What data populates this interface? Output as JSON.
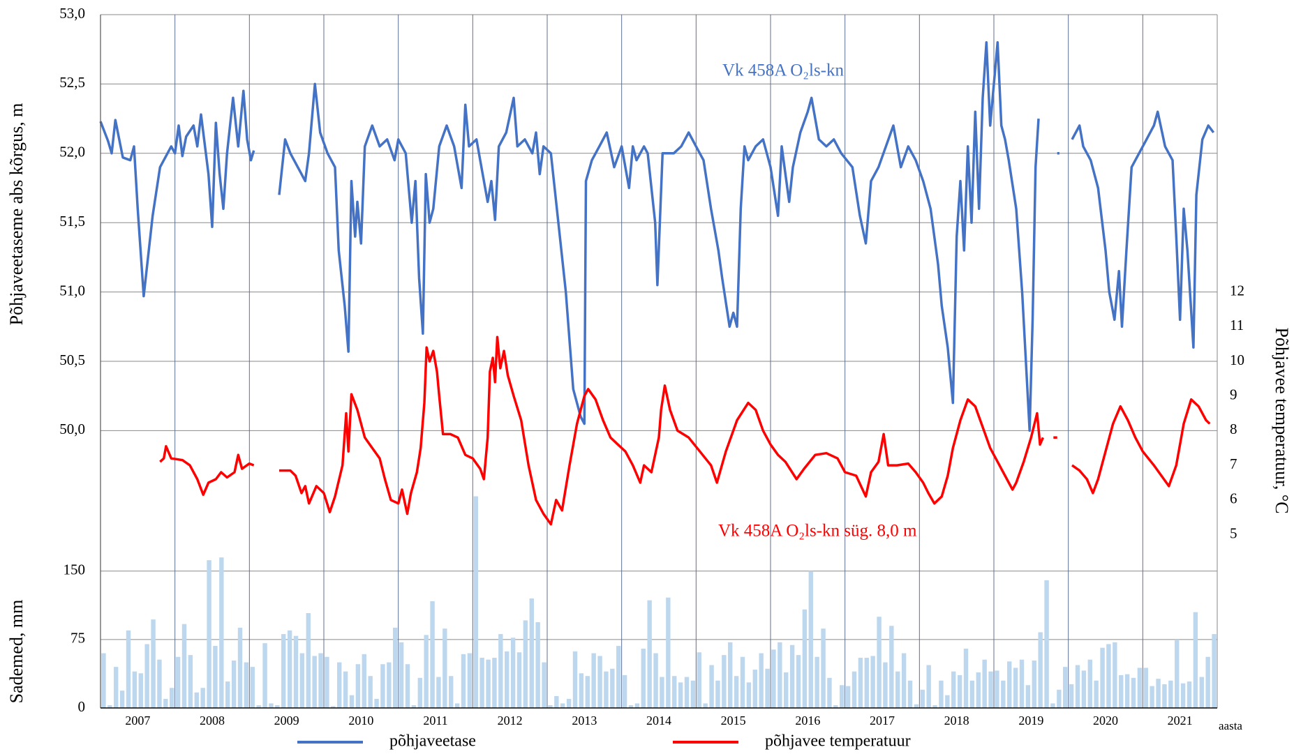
{
  "chart_data": [
    {
      "type": "line",
      "ylabel": "Põhjaveetaseme abs kõrgus, m",
      "y2label": "Põhjavee temperatuur, °C",
      "xlabel": "aasta",
      "annotations": [
        "Vk 458A  O₂ls-kn",
        "Vk 458A  O₂ls-kn  süg. 8,0 m"
      ],
      "xlim": [
        2007,
        2022
      ],
      "xticks": [
        2007,
        2008,
        2009,
        2010,
        2011,
        2012,
        2013,
        2014,
        2015,
        2016,
        2017,
        2018,
        2019,
        2020,
        2021
      ],
      "ylim": [
        48,
        53
      ],
      "yticks": [
        {
          "value": 50,
          "label": "50,0"
        },
        {
          "value": 50.5,
          "label": "50,5"
        },
        {
          "value": 51,
          "label": "51,0"
        },
        {
          "value": 51.5,
          "label": "51,5"
        },
        {
          "value": 52,
          "label": "52,0"
        },
        {
          "value": 52.5,
          "label": "52,5"
        },
        {
          "value": 53,
          "label": "53,0"
        }
      ],
      "y2lim": [
        0,
        20
      ],
      "y2ticks": [
        5,
        6,
        7,
        8,
        9,
        10,
        11,
        12
      ],
      "grid": true,
      "legend": "bottom",
      "series": [
        {
          "name": "põhjaveetase",
          "color": "#4472c4",
          "x": [
            2007.0,
            2007.1,
            2007.15,
            2007.2,
            2007.3,
            2007.4,
            2007.45,
            2007.5,
            2007.58,
            2007.7,
            2007.8,
            2007.95,
            2008.0,
            2008.05,
            2008.1,
            2008.15,
            2008.25,
            2008.3,
            2008.35,
            2008.45,
            2008.5,
            2008.55,
            2008.6,
            2008.65,
            2008.7,
            2008.78,
            2008.85,
            2008.92,
            2008.97,
            2009.02,
            2009.06,
            2009.2,
            2009.4,
            2009.48,
            2009.55,
            2009.7,
            2009.75,
            2009.8,
            2009.88,
            2009.95,
            2010.05,
            2010.15,
            2010.2,
            2010.28,
            2010.33,
            2010.37,
            2010.42,
            2010.45,
            2010.5,
            2010.55,
            2010.65,
            2010.75,
            2010.85,
            2010.95,
            2011.0,
            2011.1,
            2011.18,
            2011.23,
            2011.28,
            2011.33,
            2011.37,
            2011.42,
            2011.47,
            2011.55,
            2011.65,
            2011.75,
            2011.85,
            2011.9,
            2011.95,
            2012.05,
            2012.1,
            2012.2,
            2012.25,
            2012.3,
            2012.35,
            2012.45,
            2012.55,
            2012.6,
            2012.7,
            2012.8,
            2012.85,
            2012.9,
            2012.95,
            2013.05,
            2013.15,
            2013.25,
            2013.35,
            2013.45,
            2013.5,
            2013.52,
            2013.6,
            2013.7,
            2013.8,
            2013.9,
            2014.0,
            2014.1,
            2014.15,
            2014.2,
            2014.3,
            2014.35,
            2014.45,
            2014.48,
            2014.55,
            2014.7,
            2014.8,
            2014.9,
            2015.0,
            2015.1,
            2015.2,
            2015.3,
            2015.35,
            2015.45,
            2015.5,
            2015.55,
            2015.6,
            2015.65,
            2015.7,
            2015.8,
            2015.9,
            2016.0,
            2016.1,
            2016.15,
            2016.25,
            2016.3,
            2016.4,
            2016.5,
            2016.55,
            2016.65,
            2016.75,
            2016.85,
            2016.95,
            2017.1,
            2017.2,
            2017.28,
            2017.35,
            2017.45,
            2017.55,
            2017.65,
            2017.75,
            2017.85,
            2017.95,
            2018.05,
            2018.15,
            2018.25,
            2018.3,
            2018.38,
            2018.45,
            2018.5,
            2018.55,
            2018.6,
            2018.65,
            2018.7,
            2018.75,
            2018.8,
            2018.85,
            2018.9,
            2018.95,
            2019.0,
            2019.05,
            2019.1,
            2019.15,
            2019.2,
            2019.3,
            2019.38,
            2019.45,
            2019.48,
            2019.52,
            2019.56,
            2019.6,
            2019.75,
            2019.85,
            2019.88,
            2019.95,
            2020.05,
            2020.15,
            2020.2,
            2020.3,
            2020.4,
            2020.5,
            2020.55,
            2020.62,
            2020.68,
            2020.72,
            2020.78,
            2020.85,
            2020.95,
            2021.05,
            2021.15,
            2021.2,
            2021.3,
            2021.4,
            2021.45,
            2021.5,
            2021.55,
            2021.6,
            2021.68,
            2021.72,
            2021.8,
            2021.88,
            2021.95
          ],
          "values": [
            52.23,
            52.09,
            52.0,
            52.24,
            51.97,
            51.95,
            52.05,
            51.6,
            50.97,
            51.55,
            51.9,
            52.05,
            52.0,
            52.2,
            51.98,
            52.12,
            52.2,
            52.05,
            52.28,
            51.85,
            51.47,
            52.22,
            51.85,
            51.6,
            52.0,
            52.4,
            52.05,
            52.45,
            52.1,
            51.95,
            52.02,
            null,
            51.7,
            52.1,
            52.0,
            51.85,
            51.8,
            52.0,
            52.5,
            52.15,
            52.0,
            51.9,
            51.3,
            50.9,
            50.57,
            51.8,
            51.4,
            51.65,
            51.35,
            52.05,
            52.2,
            52.05,
            52.1,
            51.95,
            52.1,
            52.0,
            51.5,
            51.8,
            51.1,
            50.7,
            51.85,
            51.5,
            51.6,
            52.05,
            52.2,
            52.05,
            51.75,
            52.35,
            52.05,
            52.1,
            51.95,
            51.65,
            51.8,
            51.52,
            52.05,
            52.15,
            52.4,
            52.05,
            52.1,
            52.0,
            52.15,
            51.85,
            52.05,
            52.0,
            51.5,
            51.0,
            50.3,
            50.1,
            50.05,
            51.8,
            51.95,
            52.05,
            52.15,
            51.9,
            52.05,
            51.75,
            52.05,
            51.95,
            52.05,
            52.0,
            51.5,
            51.05,
            52.0,
            52.0,
            52.05,
            52.15,
            52.05,
            51.95,
            51.6,
            51.3,
            51.1,
            50.75,
            50.85,
            50.75,
            51.6,
            52.05,
            51.95,
            52.05,
            52.1,
            51.9,
            51.55,
            52.05,
            51.65,
            51.9,
            52.15,
            52.3,
            52.4,
            52.1,
            52.05,
            52.1,
            52.0,
            51.9,
            51.55,
            51.35,
            51.8,
            51.9,
            52.05,
            52.2,
            51.9,
            52.05,
            51.95,
            51.8,
            51.6,
            51.2,
            50.9,
            50.6,
            50.2,
            51.4,
            51.8,
            51.3,
            52.05,
            51.5,
            52.3,
            51.6,
            52.4,
            52.8,
            52.2,
            52.5,
            52.8,
            52.2,
            52.1,
            51.95,
            51.6,
            51.0,
            50.3,
            50.0,
            50.8,
            51.9,
            52.25,
            null,
            52.0,
            52.0,
            null,
            52.1,
            52.2,
            52.05,
            51.95,
            51.75,
            51.3,
            51.0,
            50.8,
            51.15,
            50.75,
            51.3,
            51.9,
            52.0,
            52.1,
            52.2,
            52.3,
            52.05,
            51.95,
            51.4,
            50.8,
            51.6,
            51.3,
            50.6,
            51.7,
            52.1,
            52.2,
            52.15
          ]
        },
        {
          "name": "põhjavee temperatuur",
          "color": "#ff0000",
          "axis": "y2",
          "x": [
            2007.8,
            2007.85,
            2007.88,
            2007.95,
            2008.1,
            2008.2,
            2008.3,
            2008.38,
            2008.45,
            2008.55,
            2008.62,
            2008.7,
            2008.8,
            2008.85,
            2008.9,
            2009.0,
            2009.06,
            2009.2,
            2009.4,
            2009.55,
            2009.62,
            2009.7,
            2009.75,
            2009.8,
            2009.9,
            2010.0,
            2010.08,
            2010.15,
            2010.25,
            2010.3,
            2010.33,
            2010.37,
            2010.45,
            2010.55,
            2010.65,
            2010.75,
            2010.82,
            2010.9,
            2011.0,
            2011.05,
            2011.12,
            2011.17,
            2011.25,
            2011.3,
            2011.35,
            2011.38,
            2011.42,
            2011.47,
            2011.52,
            2011.55,
            2011.6,
            2011.7,
            2011.8,
            2011.9,
            2012.0,
            2012.1,
            2012.15,
            2012.2,
            2012.23,
            2012.27,
            2012.3,
            2012.33,
            2012.37,
            2012.42,
            2012.47,
            2012.55,
            2012.65,
            2012.75,
            2012.85,
            2012.95,
            2013.05,
            2013.12,
            2013.2,
            2013.3,
            2013.4,
            2013.5,
            2013.55,
            2013.65,
            2013.75,
            2013.85,
            2013.95,
            2014.05,
            2014.15,
            2014.25,
            2014.3,
            2014.4,
            2014.5,
            2014.53,
            2014.58,
            2014.65,
            2014.75,
            2014.9,
            2015.05,
            2015.2,
            2015.28,
            2015.4,
            2015.55,
            2015.7,
            2015.8,
            2015.9,
            2016.0,
            2016.1,
            2016.2,
            2016.35,
            2016.45,
            2016.6,
            2016.75,
            2016.9,
            2017.0,
            2017.15,
            2017.28,
            2017.35,
            2017.45,
            2017.52,
            2017.58,
            2017.7,
            2017.85,
            2017.95,
            2018.05,
            2018.12,
            2018.2,
            2018.3,
            2018.38,
            2018.45,
            2018.55,
            2018.65,
            2018.75,
            2018.85,
            2018.95,
            2019.05,
            2019.15,
            2019.25,
            2019.3,
            2019.4,
            2019.5,
            2019.58,
            2019.62,
            2019.66,
            2019.73,
            2019.8,
            2019.85,
            2019.95,
            2020.05,
            2020.15,
            2020.25,
            2020.33,
            2020.4,
            2020.5,
            2020.6,
            2020.7,
            2020.8,
            2020.9,
            2021.0,
            2021.15,
            2021.25,
            2021.35,
            2021.45,
            2021.55,
            2021.65,
            2021.75,
            2021.85,
            2021.9
          ],
          "values": [
            7.1,
            7.2,
            7.55,
            7.2,
            7.15,
            7.0,
            6.6,
            6.15,
            6.5,
            6.6,
            6.8,
            6.65,
            6.8,
            7.3,
            6.9,
            7.05,
            7.0,
            null,
            6.85,
            6.85,
            6.7,
            6.2,
            6.4,
            5.9,
            6.4,
            6.2,
            5.65,
            6.1,
            7.0,
            8.5,
            7.4,
            9.05,
            8.6,
            7.8,
            7.5,
            7.2,
            6.6,
            6.0,
            5.9,
            6.3,
            5.6,
            6.2,
            6.8,
            7.5,
            8.8,
            10.4,
            10.0,
            10.3,
            9.7,
            9.0,
            7.9,
            7.9,
            7.8,
            7.3,
            7.2,
            6.9,
            6.6,
            7.8,
            9.7,
            10.1,
            9.4,
            10.7,
            9.8,
            10.3,
            9.6,
            9.0,
            8.3,
            7.0,
            6.0,
            5.6,
            5.3,
            6.0,
            5.7,
            7.0,
            8.2,
            9.0,
            9.2,
            8.9,
            8.3,
            7.8,
            7.6,
            7.4,
            7.0,
            6.5,
            7.0,
            6.8,
            7.8,
            8.6,
            9.3,
            8.6,
            8.0,
            7.8,
            7.4,
            7.0,
            6.5,
            7.4,
            8.3,
            8.8,
            8.6,
            8.0,
            7.6,
            7.3,
            7.1,
            6.6,
            6.9,
            7.3,
            7.35,
            7.2,
            6.8,
            6.7,
            6.1,
            6.8,
            7.1,
            7.9,
            7.0,
            7.0,
            7.05,
            6.8,
            6.5,
            6.2,
            5.9,
            6.1,
            6.7,
            7.5,
            8.3,
            8.9,
            8.7,
            8.1,
            7.5,
            7.1,
            6.7,
            6.3,
            6.5,
            7.1,
            7.8,
            8.5,
            7.6,
            7.8,
            null,
            7.8,
            7.8,
            null,
            7.0,
            6.85,
            6.6,
            6.2,
            6.6,
            7.4,
            8.2,
            8.7,
            8.3,
            7.8,
            7.4,
            7.0,
            6.7,
            6.4,
            7.0,
            8.2,
            8.9,
            8.7,
            8.3,
            8.2
          ]
        }
      ]
    },
    {
      "type": "bar",
      "ylabel": "Sademed, mm",
      "ylim": [
        0,
        250
      ],
      "yticks": [
        0,
        75,
        150
      ],
      "color": "#bdd7ee",
      "values": [
        60,
        3,
        45,
        19,
        85,
        40,
        38,
        70,
        97,
        53,
        10,
        22,
        56,
        92,
        58,
        17,
        22,
        162,
        68,
        165,
        29,
        52,
        88,
        50,
        45,
        3,
        71,
        5,
        3,
        81,
        85,
        79,
        60,
        104,
        57,
        60,
        56,
        2,
        50,
        40,
        14,
        48,
        59,
        35,
        10,
        48,
        50,
        88,
        72,
        48,
        3,
        33,
        80,
        117,
        34,
        87,
        35,
        5,
        59,
        60,
        232,
        55,
        53,
        55,
        81,
        62,
        77,
        61,
        96,
        120,
        94,
        50,
        3,
        13,
        5,
        10,
        62,
        38,
        35,
        60,
        57,
        40,
        43,
        68,
        36,
        3,
        5,
        65,
        118,
        60,
        34,
        121,
        35,
        28,
        34,
        30,
        61,
        5,
        47,
        30,
        58,
        72,
        35,
        56,
        28,
        42,
        60,
        43,
        64,
        72,
        39,
        69,
        58,
        108,
        150,
        56,
        87,
        33,
        3,
        25,
        24,
        40,
        55,
        55,
        57,
        100,
        50,
        90,
        40,
        60,
        30,
        4,
        20,
        47,
        3,
        30,
        14,
        40,
        36,
        65,
        30,
        39,
        53,
        40,
        41,
        30,
        51,
        44,
        53,
        25,
        52,
        83,
        140,
        5,
        20,
        45,
        26,
        47,
        41,
        53,
        30,
        66,
        70,
        72,
        36,
        37,
        33,
        44,
        44,
        24,
        32,
        26,
        30,
        75,
        27,
        29,
        105,
        34,
        56,
        81
      ]
    }
  ]
}
